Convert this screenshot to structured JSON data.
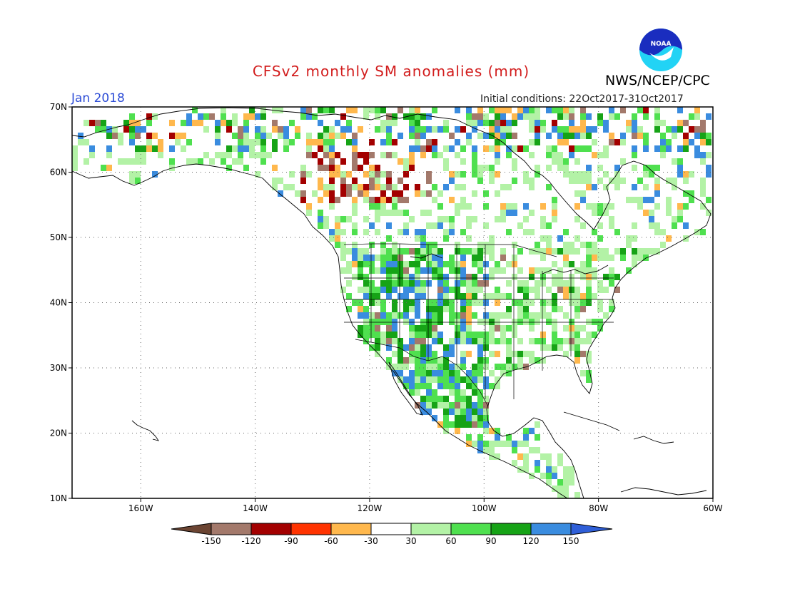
{
  "header": {
    "title": "CFSv2 monthly SM anomalies (mm)",
    "organization": "NWS/NCEP/CPC",
    "logo_text": "NOAA",
    "period": "Jan 2018",
    "initial_conditions": "Initial conditions: 22Oct2017-31Oct2017"
  },
  "map": {
    "projection": "cylindrical lon/lat",
    "lon_range": [
      -172,
      -60
    ],
    "lat_range": [
      10,
      70
    ],
    "grid": "dotted",
    "lat_ticks": [
      "10N",
      "20N",
      "30N",
      "40N",
      "50N",
      "60N",
      "70N"
    ],
    "lon_ticks": [
      "160W",
      "140W",
      "120W",
      "100W",
      "80W",
      "60W"
    ]
  },
  "colorbar": {
    "labels": [
      "-150",
      "-120",
      "-90",
      "-60",
      "-30",
      "30",
      "60",
      "90",
      "120",
      "150"
    ],
    "colors": [
      "#6b4432",
      "#a3796b",
      "#a30000",
      "#ff3300",
      "#ffb84d",
      "#ffffff",
      "#b3f2a6",
      "#4fe04f",
      "#16a316",
      "#3a8cdf",
      "#2f5fd8"
    ]
  },
  "colors": {
    "title": "#d21d1d",
    "period": "#2b4bd6",
    "noaa_blue": "#1a2dbf",
    "noaa_cyan": "#22d3f5"
  }
}
